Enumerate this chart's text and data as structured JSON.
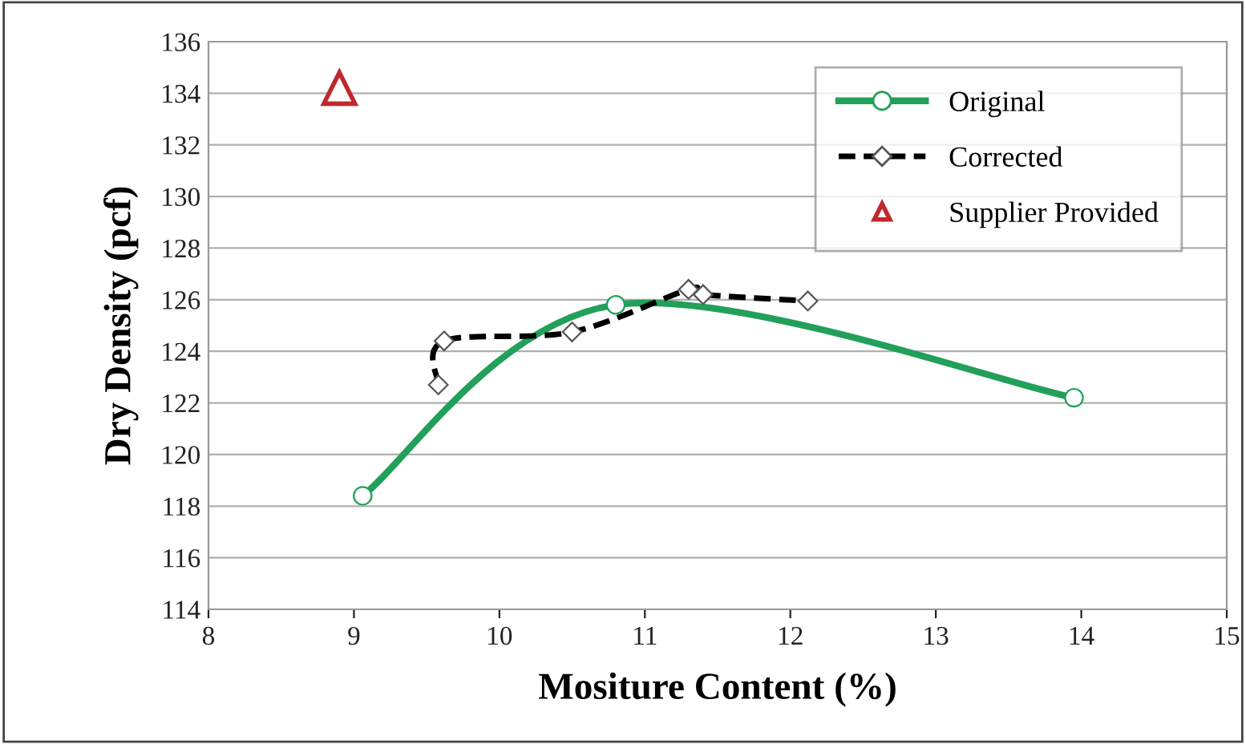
{
  "chart_data": {
    "type": "line",
    "xlabel": "Mositure Content (%)",
    "ylabel": "Dry Density (pcf)",
    "xlim": [
      8,
      15
    ],
    "xticks": [
      8,
      9,
      10,
      11,
      12,
      13,
      14,
      15
    ],
    "ylim": [
      114,
      136
    ],
    "yticks": [
      114,
      116,
      118,
      120,
      122,
      124,
      126,
      128,
      130,
      132,
      134,
      136
    ],
    "grid": "y",
    "legend": "top right",
    "series": [
      {
        "name": "Original",
        "color": "#22a05a",
        "marker": "circle",
        "line_style": "solid",
        "x": [
          9.06,
          10.8,
          13.95
        ],
        "values": [
          118.4,
          125.8,
          122.2
        ]
      },
      {
        "name": "Corrected",
        "color": "#000000",
        "marker": "diamond",
        "line_style": "dashed",
        "x": [
          9.58,
          9.62,
          10.5,
          11.3,
          11.4,
          12.12
        ],
        "values": [
          122.7,
          124.4,
          124.75,
          126.4,
          126.2,
          125.95
        ]
      },
      {
        "name": "Supplier Provided",
        "type": "scatter",
        "color": "#c0282d",
        "marker": "triangle",
        "x": [
          8.9
        ],
        "values": [
          134.2
        ]
      }
    ]
  }
}
